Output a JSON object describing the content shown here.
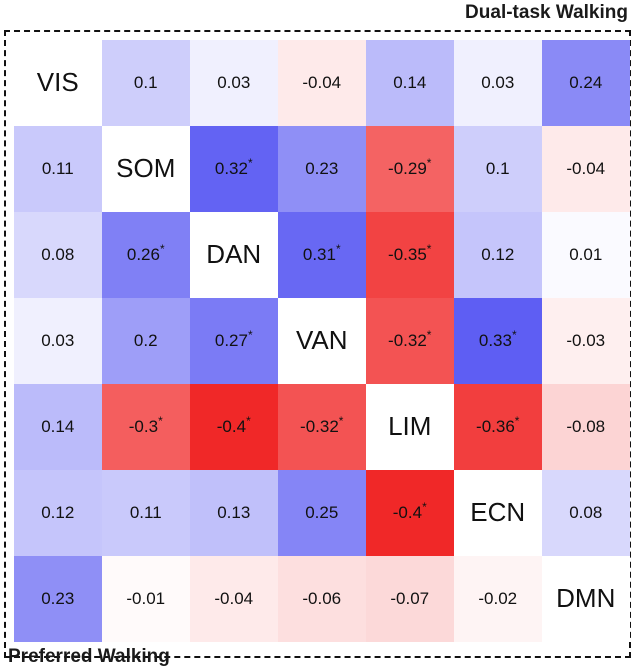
{
  "titles": {
    "upper": "Dual-task Walking",
    "lower": "Preferred Walking"
  },
  "chart_data": {
    "type": "heatmap",
    "rows": [
      "VIS",
      "SOM",
      "DAN",
      "VAN",
      "LIM",
      "ECN",
      "DMN"
    ],
    "columns": [
      "VIS",
      "SOM",
      "DAN",
      "VAN",
      "LIM",
      "ECN",
      "DMN"
    ],
    "upper_triangle_label": "Dual-task Walking",
    "lower_triangle_label": "Preferred Walking",
    "significance_marker": "*",
    "values": [
      [
        null,
        0.1,
        0.03,
        -0.04,
        0.14,
        0.03,
        0.24
      ],
      [
        0.11,
        null,
        0.32,
        0.23,
        -0.29,
        0.1,
        -0.04
      ],
      [
        0.08,
        0.26,
        null,
        0.31,
        -0.35,
        0.12,
        0.01
      ],
      [
        0.03,
        0.2,
        0.27,
        null,
        -0.32,
        0.33,
        -0.03
      ],
      [
        0.14,
        -0.3,
        -0.4,
        -0.32,
        null,
        -0.36,
        -0.08
      ],
      [
        0.12,
        0.11,
        0.13,
        0.25,
        -0.4,
        null,
        0.08
      ],
      [
        0.23,
        -0.01,
        -0.04,
        -0.06,
        -0.07,
        -0.02,
        null
      ]
    ],
    "labels": [
      [
        "VIS",
        "0.1",
        "0.03",
        "-0.04",
        "0.14",
        "0.03",
        "0.24"
      ],
      [
        "0.11",
        "SOM",
        "0.32",
        "0.23",
        "-0.29",
        "0.1",
        "-0.04"
      ],
      [
        "0.08",
        "0.26",
        "DAN",
        "0.31",
        "-0.35",
        "0.12",
        "0.01"
      ],
      [
        "0.03",
        "0.2",
        "0.27",
        "VAN",
        "-0.32",
        "0.33",
        "-0.03"
      ],
      [
        "0.14",
        "-0.3",
        "-0.4",
        "-0.32",
        "LIM",
        "-0.36",
        "-0.08"
      ],
      [
        "0.12",
        "0.11",
        "0.13",
        "0.25",
        "-0.4",
        "ECN",
        "0.08"
      ],
      [
        "0.23",
        "-0.01",
        "-0.04",
        "-0.06",
        "-0.07",
        "-0.02",
        "DMN"
      ]
    ],
    "significant": [
      [
        false,
        false,
        false,
        false,
        false,
        false,
        false
      ],
      [
        false,
        false,
        true,
        false,
        true,
        false,
        false
      ],
      [
        false,
        true,
        false,
        true,
        true,
        false,
        false
      ],
      [
        false,
        false,
        true,
        false,
        true,
        true,
        false
      ],
      [
        false,
        true,
        true,
        true,
        false,
        true,
        false
      ],
      [
        false,
        false,
        false,
        false,
        true,
        false,
        false
      ],
      [
        false,
        false,
        false,
        false,
        false,
        false,
        false
      ]
    ],
    "colors": {
      "positive": "#3c3cf0",
      "negative": "#f02828",
      "neutral": "#ffffff"
    },
    "color_range": [
      -0.4,
      0.4
    ]
  }
}
